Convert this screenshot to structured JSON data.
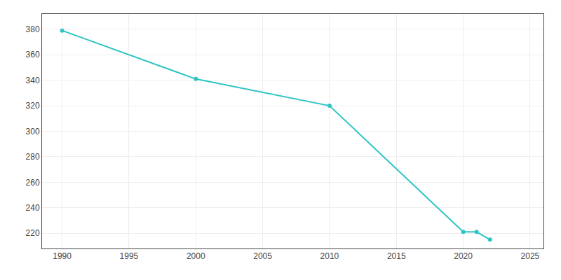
{
  "chart_data": {
    "type": "line",
    "x": [
      1990,
      2000,
      2010,
      2020,
      2021,
      2022
    ],
    "values": [
      379,
      341,
      320,
      221,
      221,
      215
    ],
    "color": "#2EC4C4",
    "marker": "circle",
    "line_style": "solid",
    "xlim": [
      1988.5,
      2026
    ],
    "ylim": [
      208,
      392
    ],
    "xticks": [
      1990,
      1995,
      2000,
      2005,
      2010,
      2015,
      2020,
      2025
    ],
    "yticks": [
      220,
      240,
      260,
      280,
      300,
      320,
      340,
      360,
      380
    ],
    "grid": true
  }
}
